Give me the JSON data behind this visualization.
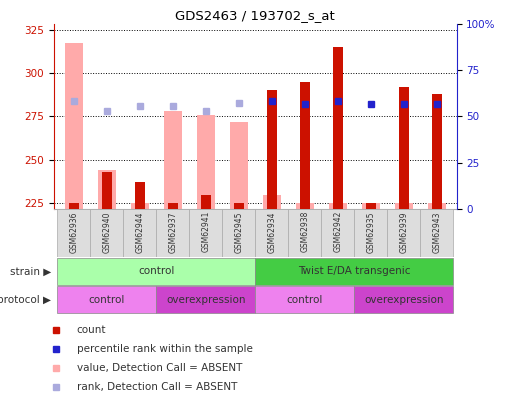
{
  "title": "GDS2463 / 193702_s_at",
  "samples": [
    "GSM62936",
    "GSM62940",
    "GSM62944",
    "GSM62937",
    "GSM62941",
    "GSM62945",
    "GSM62934",
    "GSM62938",
    "GSM62942",
    "GSM62935",
    "GSM62939",
    "GSM62943"
  ],
  "count_tops": [
    225,
    243,
    237,
    225,
    230,
    225,
    290,
    295,
    315,
    225,
    292,
    288
  ],
  "pink_tops": [
    317,
    244,
    225,
    278,
    276,
    272,
    230,
    225,
    225,
    225,
    225,
    225
  ],
  "blue_sq_y": [
    284,
    278,
    281,
    281,
    278,
    283,
    284,
    282,
    284,
    282,
    282,
    282
  ],
  "absent_mask": [
    true,
    true,
    true,
    true,
    true,
    true,
    false,
    false,
    false,
    false,
    false,
    false
  ],
  "ylim_left": [
    222,
    328
  ],
  "ylim_right": [
    0,
    100
  ],
  "yticks_left": [
    225,
    250,
    275,
    300,
    325
  ],
  "yticks_right": [
    0,
    25,
    50,
    75,
    100
  ],
  "ytick_labels_right": [
    "0",
    "25",
    "50",
    "75",
    "100%"
  ],
  "strain_groups": [
    {
      "label": "control",
      "start": 0,
      "end": 6,
      "color": "#aaffaa"
    },
    {
      "label": "Twist E/DA transgenic",
      "start": 6,
      "end": 12,
      "color": "#44cc44"
    }
  ],
  "protocol_groups": [
    {
      "label": "control",
      "start": 0,
      "end": 3,
      "color": "#ee82ee"
    },
    {
      "label": "overexpression",
      "start": 3,
      "end": 6,
      "color": "#cc44cc"
    },
    {
      "label": "control",
      "start": 6,
      "end": 9,
      "color": "#ee82ee"
    },
    {
      "label": "overexpression",
      "start": 9,
      "end": 12,
      "color": "#cc44cc"
    }
  ],
  "count_color": "#cc1100",
  "pink_color": "#ffaaaa",
  "blue_color": "#2222cc",
  "light_blue_color": "#aaaadd",
  "bg_color": "#ffffff",
  "left_axis_color": "#cc1100",
  "right_axis_color": "#2222cc"
}
